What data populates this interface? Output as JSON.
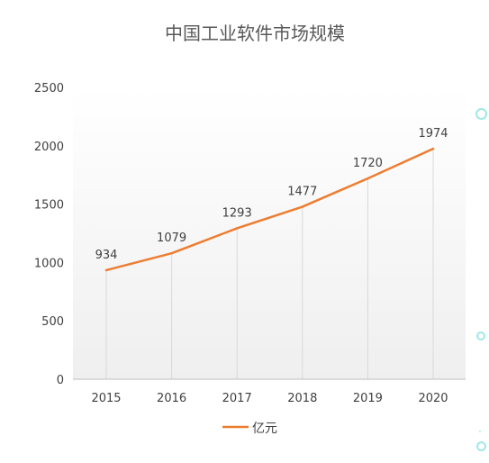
{
  "chart_data": {
    "type": "line",
    "title": "中国工业软件市场规模",
    "categories": [
      "2015",
      "2016",
      "2017",
      "2018",
      "2019",
      "2020"
    ],
    "series": [
      {
        "name": "亿元",
        "values": [
          934,
          1079,
          1293,
          1477,
          1720,
          1974
        ],
        "color": "#ED7D31"
      }
    ],
    "y_ticks": [
      "0",
      "500",
      "1000",
      "1500",
      "2000",
      "2500"
    ],
    "ylim": [
      0,
      2500
    ],
    "grid": "vertical",
    "data_labels": true,
    "legend_position": "bottom",
    "colors": {
      "title": "#595959",
      "tick_label": "#404040",
      "grid": "#d9d9d9",
      "axis": "#bfbfbf",
      "plot_bg_top": "#ffffff",
      "plot_bg_bottom": "#efefef"
    }
  }
}
